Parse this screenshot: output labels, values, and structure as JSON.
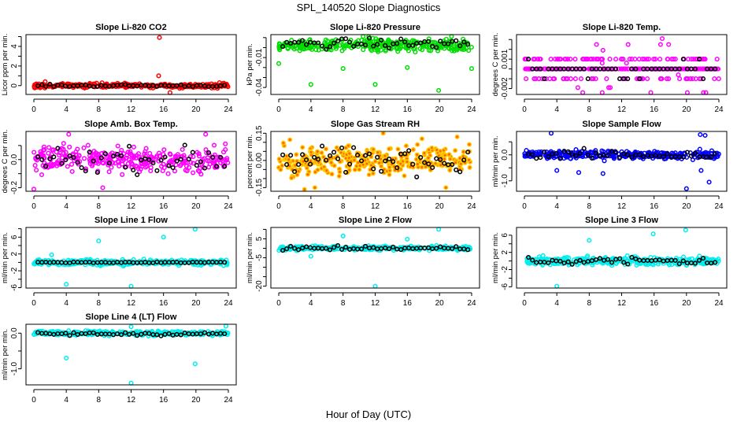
{
  "figure": {
    "title": "SPL_140520  Slope Diagnostics",
    "xlabel": "Hour of Day (UTC)"
  },
  "chart_data": [
    {
      "type": "scatter",
      "title": "Slope Li-820 CO2",
      "ylabel": "Licor ppm per min.",
      "color": "#ff0000",
      "fill": "none",
      "xlim": [
        0,
        24
      ],
      "xticks": [
        0,
        4,
        8,
        12,
        16,
        20,
        24
      ],
      "ylim": [
        -0.9,
        5.2
      ],
      "yticks": [
        0,
        1,
        2,
        3,
        4,
        5
      ],
      "ylabels": {
        "0": "0",
        "2": "2",
        "4": "4"
      },
      "bulk": {
        "center": 0.0,
        "spread": 0.18
      },
      "black": {
        "center": 0.0,
        "spread": 0.1
      },
      "outliers": [
        [
          15.5,
          4.9
        ],
        [
          15.4,
          1.0
        ],
        [
          16.8,
          -0.8
        ],
        [
          1.4,
          0.4
        ],
        [
          22.9,
          0.3
        ]
      ]
    },
    {
      "type": "scatter",
      "title": "Slope Li-820 Pressure",
      "ylabel": "kPa per min.",
      "color": "#00dd00",
      "fill": "none",
      "xlim": [
        0,
        24
      ],
      "xticks": [
        0,
        4,
        8,
        12,
        16,
        20,
        24
      ],
      "ylim": [
        -0.047,
        0.013
      ],
      "yticks": [
        0.01,
        0,
        -0.01,
        -0.02,
        -0.03,
        -0.04
      ],
      "ylabels": {
        "-0.01": "-0.01",
        "-0.04": "-0.04"
      },
      "bulk": {
        "center": 0.002,
        "spread": 0.005
      },
      "black": {
        "center": 0.004,
        "spread": 0.004
      },
      "outliers": [
        [
          4,
          -0.037
        ],
        [
          12,
          -0.037
        ],
        [
          19.9,
          -0.043
        ],
        [
          8,
          -0.021
        ],
        [
          24,
          -0.021
        ],
        [
          16,
          -0.02
        ],
        [
          0,
          -0.016
        ],
        [
          10.5,
          0.015
        ],
        [
          11.2,
          0.015
        ],
        [
          21.5,
          0.014
        ]
      ]
    },
    {
      "type": "scatter",
      "title": "Slope Li-820 Temp.",
      "ylabel": "degrees C per min.",
      "color": "#ff00ff",
      "fill": "none",
      "xlim": [
        0,
        24
      ],
      "xticks": [
        0,
        4,
        8,
        12,
        16,
        20,
        24
      ],
      "ylim": [
        -0.0026,
        0.0035
      ],
      "yticks": [
        0.003,
        0.002,
        0.001,
        0,
        -0.001,
        -0.002
      ],
      "ylabels": {
        "0.001": "0.001",
        "-0.002": "-0.002"
      },
      "levels": [
        0.001,
        0,
        -0.001
      ],
      "outliers": [
        [
          8.9,
          0.0025
        ],
        [
          9.7,
          0.0019
        ],
        [
          12.8,
          0.0025
        ],
        [
          17,
          0.0031
        ],
        [
          16.8,
          0.0025
        ],
        [
          17.8,
          0.0025
        ],
        [
          12.6,
          0.0006
        ],
        [
          19,
          -0.0006
        ],
        [
          6.6,
          -0.0019
        ],
        [
          7.2,
          -0.0025
        ],
        [
          9.6,
          -0.0025
        ],
        [
          10.4,
          -0.0019
        ],
        [
          10.6,
          -0.0019
        ],
        [
          15.6,
          -0.0025
        ],
        [
          20.1,
          -0.0025
        ],
        [
          22.1,
          -0.0025
        ],
        [
          22.4,
          -0.0025
        ],
        [
          9.6,
          0.0006
        ]
      ]
    },
    {
      "type": "scatter",
      "title": "Slope Amb. Box Temp.",
      "ylabel": "degrees C per min.",
      "color": "#ff00ff",
      "fill": "none",
      "xlim": [
        0,
        24
      ],
      "xticks": [
        0,
        4,
        8,
        12,
        16,
        20,
        24
      ],
      "ylim": [
        -0.225,
        0.2
      ],
      "yticks": [
        0.1,
        0.0,
        -0.1,
        -0.2
      ],
      "ylabels": {
        "0": "0.0",
        "-0.2": "-0.2"
      },
      "bulk": {
        "center": 0.0,
        "spread": 0.07
      },
      "black": {
        "center": 0.0,
        "spread": 0.07
      },
      "outliers": [
        [
          0,
          -0.21
        ],
        [
          8.5,
          -0.2
        ],
        [
          4.3,
          0.18
        ],
        [
          21.2,
          0.18
        ]
      ]
    },
    {
      "type": "scatter",
      "title": "Slope Gas Stream RH",
      "ylabel": "percent per min.",
      "color": "#ffcc00",
      "fill": "#ff6600",
      "xlim": [
        0,
        24
      ],
      "xticks": [
        0,
        4,
        8,
        12,
        16,
        20,
        24
      ],
      "ylim": [
        -0.17,
        0.16
      ],
      "yticks": [
        0.15,
        0.1,
        0.05,
        0,
        -0.05,
        -0.1,
        -0.15
      ],
      "ylabels": {
        "0.15": "0.15",
        "0": "0.00",
        "-0.15": "-0.15"
      },
      "bulk": {
        "center": 0.0,
        "spread": 0.065
      },
      "black": {
        "center": 0.0,
        "spread": 0.06
      },
      "outliers": [
        [
          3.2,
          -0.16
        ],
        [
          4.5,
          -0.15
        ],
        [
          13,
          0.15
        ],
        [
          20.8,
          -0.15
        ],
        [
          22.2,
          0.13
        ]
      ]
    },
    {
      "type": "scatter",
      "title": "Slope Sample Flow",
      "ylabel": "ml/min per min.",
      "color": "#0000ff",
      "fill": "none",
      "xlim": [
        0,
        24
      ],
      "xticks": [
        0,
        4,
        8,
        12,
        16,
        20,
        24
      ],
      "ylim": [
        -1.4,
        0.9
      ],
      "yticks": [
        0.5,
        0.0,
        -0.5,
        -1.0
      ],
      "ylabels": {
        "0": "0.0",
        "-1": "-1.0"
      },
      "bulk": {
        "center": 0.0,
        "spread": 0.12
      },
      "black": {
        "center": 0.0,
        "spread": 0.15
      },
      "outliers": [
        [
          3.3,
          0.85
        ],
        [
          20,
          -1.3
        ],
        [
          22.8,
          -1.05
        ],
        [
          21.7,
          0.78
        ],
        [
          22.3,
          0.75
        ],
        [
          21.8,
          -0.6
        ],
        [
          4,
          -0.6
        ],
        [
          9.7,
          -0.72
        ],
        [
          6.7,
          -0.68
        ]
      ]
    },
    {
      "type": "scatter",
      "title": "Slope Line 1 Flow",
      "ylabel": "ml/min per min.",
      "color": "#00eeee",
      "fill": "none",
      "xlim": [
        0,
        24
      ],
      "xticks": [
        0,
        4,
        8,
        12,
        16,
        20,
        24
      ],
      "ylim": [
        -6.1,
        8.3
      ],
      "yticks": [
        8,
        6,
        4,
        2,
        0,
        -2,
        -4,
        -6
      ],
      "ylabels": {
        "6": "6",
        "2": "2",
        "-2": "-2",
        "-6": "-6"
      },
      "bulk": {
        "center": 0.0,
        "spread": 0.55
      },
      "black": {
        "center": 0.0,
        "spread": 0.1
      },
      "outliers": [
        [
          4,
          -5.2
        ],
        [
          12,
          -5.7
        ],
        [
          8,
          5.1
        ],
        [
          16,
          6
        ],
        [
          19.9,
          8.2
        ],
        [
          2.2,
          1.8
        ]
      ]
    },
    {
      "type": "scatter",
      "title": "Slope Line 2 Flow",
      "ylabel": "ml/min per min.",
      "color": "#00eeee",
      "fill": "none",
      "xlim": [
        0,
        24
      ],
      "xticks": [
        0,
        4,
        8,
        12,
        16,
        20,
        24
      ],
      "ylim": [
        -21,
        11
      ],
      "yticks": [
        10,
        5,
        0,
        -5,
        -10,
        -15,
        -20
      ],
      "ylabels": {
        "5": "5",
        "-5": "-5",
        "-20": "-20"
      },
      "bulk": {
        "center": 0.0,
        "spread": 0.9
      },
      "black": {
        "center": 0.0,
        "spread": 0.8
      },
      "outliers": [
        [
          4,
          -4.2
        ],
        [
          8,
          6.5
        ],
        [
          12,
          -21
        ],
        [
          16,
          4.8
        ],
        [
          19.9,
          10.2
        ]
      ]
    },
    {
      "type": "scatter",
      "title": "Slope Line 3 Flow",
      "ylabel": "ml/min per min.",
      "color": "#00eeee",
      "fill": "none",
      "xlim": [
        0,
        24
      ],
      "xticks": [
        0,
        4,
        8,
        12,
        16,
        20,
        24
      ],
      "ylim": [
        -6.3,
        7.8
      ],
      "yticks": [
        6,
        4,
        2,
        0,
        -2,
        -4,
        -6
      ],
      "ylabels": {
        "6": "6",
        "2": "2",
        "-2": "-2",
        "-6": "-6"
      },
      "bulk": {
        "center": 0.0,
        "spread": 0.75
      },
      "black": {
        "center": 0.0,
        "spread": 0.8
      },
      "outliers": [
        [
          4,
          -6.1
        ],
        [
          8,
          4.8
        ],
        [
          15.9,
          6.3
        ],
        [
          19.9,
          7.2
        ]
      ]
    },
    {
      "type": "scatter",
      "title": "Slope Line 4 (LT) Flow",
      "ylabel": "ml/min per min.",
      "color": "#00eeee",
      "fill": "none",
      "xlim": [
        0,
        24
      ],
      "xticks": [
        0,
        4,
        8,
        12,
        16,
        20,
        24
      ],
      "ylim": [
        -1.45,
        0.25
      ],
      "yticks": [
        0.0,
        -0.5,
        -1.0
      ],
      "ylabels": {
        "0": "0.0",
        "-1": "-1.0"
      },
      "bulk": {
        "center": 0.0,
        "spread": 0.05
      },
      "black": {
        "center": -0.02,
        "spread": 0.04
      },
      "outliers": [
        [
          4,
          -0.7
        ],
        [
          12,
          -1.4
        ],
        [
          19.9,
          -0.86
        ],
        [
          23.7,
          0.2
        ],
        [
          12,
          0.18
        ]
      ]
    }
  ]
}
